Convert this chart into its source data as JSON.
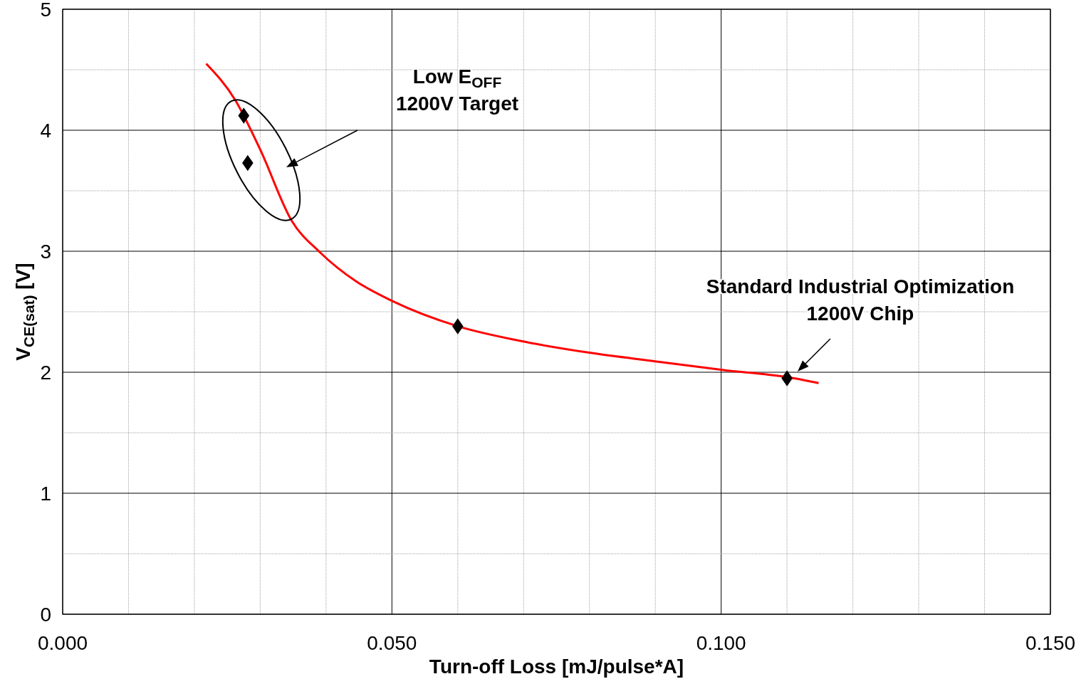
{
  "chart_data": {
    "type": "scatter",
    "xlabel": "Turn-off Loss [mJ/pulse*A]",
    "ylabel": "V$_{CE(sat)}$  [V]",
    "xlim": [
      0,
      0.15
    ],
    "ylim": [
      0,
      5
    ],
    "xticks": [
      {
        "value": 0,
        "label": "0.000"
      },
      {
        "value": 0.01,
        "label": null
      },
      {
        "value": 0.02,
        "label": null
      },
      {
        "value": 0.03,
        "label": null
      },
      {
        "value": 0.04,
        "label": null
      },
      {
        "value": 0.05,
        "label": "0.050"
      },
      {
        "value": 0.06,
        "label": null
      },
      {
        "value": 0.07,
        "label": null
      },
      {
        "value": 0.08,
        "label": null
      },
      {
        "value": 0.09,
        "label": null
      },
      {
        "value": 0.1,
        "label": "0.100"
      },
      {
        "value": 0.11,
        "label": null
      },
      {
        "value": 0.12,
        "label": null
      },
      {
        "value": 0.13,
        "label": null
      },
      {
        "value": 0.14,
        "label": null
      },
      {
        "value": 0.15,
        "label": "0.150"
      }
    ],
    "yticks": [
      0,
      {
        "value": 0.5,
        "label": null
      },
      1,
      {
        "value": 1.5,
        "label": null
      },
      2,
      {
        "value": 2.5,
        "label": null
      },
      3,
      {
        "value": 3.5,
        "label": null
      },
      4,
      {
        "value": 4.5,
        "label": null
      },
      5
    ],
    "grid": true,
    "series": [
      {
        "type": "line",
        "color": "#ff0000",
        "marker": "none",
        "line_style": "solid",
        "x": [
          0.0218,
          0.0262,
          0.03,
          0.0348,
          0.0391,
          0.0446,
          0.05,
          0.06,
          0.0694,
          0.0802,
          0.09,
          0.1,
          0.11,
          0.1148
        ],
        "values": [
          4.55,
          4.25,
          3.84,
          3.25,
          2.99,
          2.75,
          2.59,
          2.38,
          2.26,
          2.16,
          2.09,
          2.02,
          1.96,
          1.91
        ]
      },
      {
        "color": "#000000",
        "marker": "diamond",
        "x": [
          0.0275,
          0.0281,
          0.06,
          0.11
        ],
        "values": [
          4.12,
          3.73,
          2.38,
          1.95
        ]
      }
    ],
    "annotations": [
      "Low E$_{OFF}$\n1200V Target",
      "Standard Industrial Optimization\n1200V Chip"
    ]
  }
}
